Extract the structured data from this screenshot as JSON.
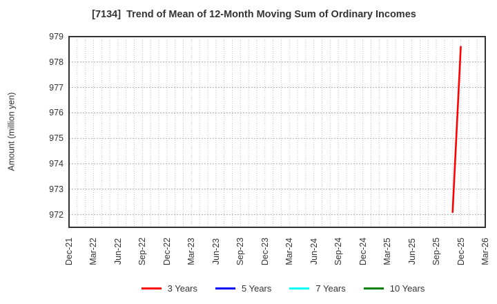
{
  "chart_data": {
    "type": "line",
    "title": "[7134]  Trend of Mean of 12-Month Moving Sum of Ordinary Incomes",
    "xlabel": "",
    "ylabel": "Amount (million yen)",
    "x_ticks": [
      "Dec-21",
      "Mar-22",
      "Jun-22",
      "Sep-22",
      "Dec-22",
      "Mar-23",
      "Jun-23",
      "Sep-23",
      "Dec-23",
      "Mar-24",
      "Jun-24",
      "Sep-24",
      "Dec-24",
      "Mar-25",
      "Jun-25",
      "Sep-25",
      "Dec-25",
      "Mar-26"
    ],
    "y_ticks": [
      972,
      973,
      974,
      975,
      976,
      977,
      978,
      979
    ],
    "ylim": [
      971.5,
      979
    ],
    "grid": true,
    "legend_position": "bottom",
    "colors": {
      "axis": "#333333",
      "grid_horizontal": "#a8a8a8",
      "grid_vertical": "#c4c4c4",
      "text": "#333333",
      "background": "#ffffff"
    },
    "series": [
      {
        "name": "3 Years",
        "color": "#ff0000",
        "points": [
          {
            "x": "Nov-25",
            "y": 972.1
          },
          {
            "x": "Dec-25",
            "y": 978.6
          }
        ]
      },
      {
        "name": "5 Years",
        "color": "#0000ff",
        "points": []
      },
      {
        "name": "7 Years",
        "color": "#00ffff",
        "points": []
      },
      {
        "name": "10 Years",
        "color": "#008000",
        "points": []
      }
    ]
  }
}
